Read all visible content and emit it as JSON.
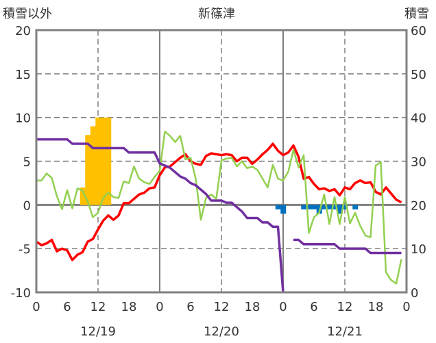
{
  "chart_data": {
    "type": "line",
    "title": "新篠津",
    "left_axis_label": "積雪以外",
    "right_axis_label": "積雪",
    "left_ylim": [
      -10,
      20
    ],
    "left_ticks": [
      "20",
      "15",
      "10",
      "5",
      "0",
      "-5",
      "-10"
    ],
    "right_ylim": [
      0,
      60
    ],
    "right_ticks": [
      "60",
      "50",
      "40",
      "30",
      "20",
      "10",
      "0"
    ],
    "x_hours_range": [
      0,
      72
    ],
    "x_tick_labels": [
      "0",
      "6",
      "12",
      "18",
      "0",
      "6",
      "12",
      "18",
      "0",
      "6",
      "12",
      "18",
      "0"
    ],
    "date_labels": [
      "12/19",
      "12/20",
      "12/21"
    ],
    "grid": true,
    "series": [
      {
        "name": "red",
        "axis": "left",
        "color": "#ff0000",
        "type": "line",
        "values": [
          -4.2,
          -4.6,
          -4.4,
          -4.0,
          -5.3,
          -5.0,
          -5.2,
          -6.3,
          -5.7,
          -5.4,
          -4.2,
          -3.9,
          -2.8,
          -1.8,
          -1.2,
          -1.7,
          -1.2,
          0.2,
          0.2,
          0.7,
          1.2,
          1.4,
          1.9,
          2.0,
          3.4,
          4.3,
          4.4,
          4.9,
          5.4,
          5.8,
          5.0,
          4.7,
          4.6,
          5.6,
          5.9,
          5.8,
          5.7,
          5.8,
          5.7,
          5.0,
          5.4,
          5.4,
          4.7,
          5.2,
          5.8,
          6.3,
          7.0,
          6.2,
          5.7,
          6.0,
          6.8,
          5.5,
          3.0,
          3.2,
          2.4,
          1.8,
          1.9,
          1.6,
          1.8,
          1.1,
          2.0,
          1.8,
          2.5,
          2.8,
          2.5,
          2.6,
          1.5,
          1.2,
          2.0,
          1.3,
          0.6,
          0.3
        ]
      },
      {
        "name": "green",
        "axis": "left",
        "color": "#92d050",
        "type": "line",
        "values": [
          2.8,
          2.8,
          3.6,
          3.1,
          1.0,
          -0.5,
          1.7,
          -0.4,
          1.9,
          1.6,
          0.4,
          -1.4,
          -0.9,
          0.8,
          1.4,
          0.9,
          0.8,
          2.7,
          2.5,
          4.4,
          3.0,
          2.6,
          2.4,
          3.2,
          3.9,
          8.4,
          7.9,
          7.2,
          7.9,
          5.2,
          5.4,
          3.0,
          -1.7,
          0.8,
          1.2,
          0.7,
          5.1,
          5.3,
          5.4,
          4.4,
          5.0,
          4.2,
          4.4,
          4.0,
          3.0,
          2.0,
          4.6,
          3.0,
          2.8,
          3.8,
          6.3,
          4.3,
          5.7,
          -3.2,
          -1.4,
          -0.9,
          1.2,
          -2.2,
          0.9,
          -2.2,
          0.9,
          -2.1,
          -0.9,
          -2.4,
          -3.5,
          -3.7,
          4.5,
          4.9,
          -7.7,
          -8.6,
          -9.0,
          -6.2
        ]
      },
      {
        "name": "purple",
        "axis": "right",
        "color": "#7030a0",
        "type": "line",
        "values": [
          35,
          35,
          35,
          35,
          35,
          35,
          35,
          34,
          34,
          34,
          34,
          33,
          33,
          33,
          33,
          33,
          33,
          33,
          32,
          32,
          32,
          32,
          32,
          32,
          29.5,
          29,
          28.5,
          27.5,
          26.5,
          26,
          25,
          24.5,
          23.5,
          22.5,
          21,
          21,
          21,
          20.5,
          20.5,
          19.5,
          18.5,
          17,
          17,
          17,
          16,
          16,
          15,
          15,
          0,
          null,
          12,
          12,
          11,
          11,
          11,
          11,
          11,
          11,
          11,
          10,
          10,
          10,
          10,
          10,
          10,
          9,
          9,
          9,
          9,
          9,
          9,
          9
        ]
      },
      {
        "name": "orange",
        "axis": "left",
        "color": "#ffc000",
        "type": "bar",
        "values": {
          "9": 2,
          "10": 8,
          "11": 9,
          "12": 10,
          "13": 10,
          "14": 10
        }
      },
      {
        "name": "blue",
        "axis": "left",
        "color": "#0070c0",
        "type": "bar",
        "values": {
          "47": -0.5,
          "48": -1.0,
          "52": -0.5,
          "53": -0.5,
          "54": -0.5,
          "55": -1.0,
          "56": -0.5,
          "57": -0.5,
          "58": -0.5,
          "59": -1.0,
          "60": -0.5,
          "62": -0.5
        }
      }
    ]
  }
}
